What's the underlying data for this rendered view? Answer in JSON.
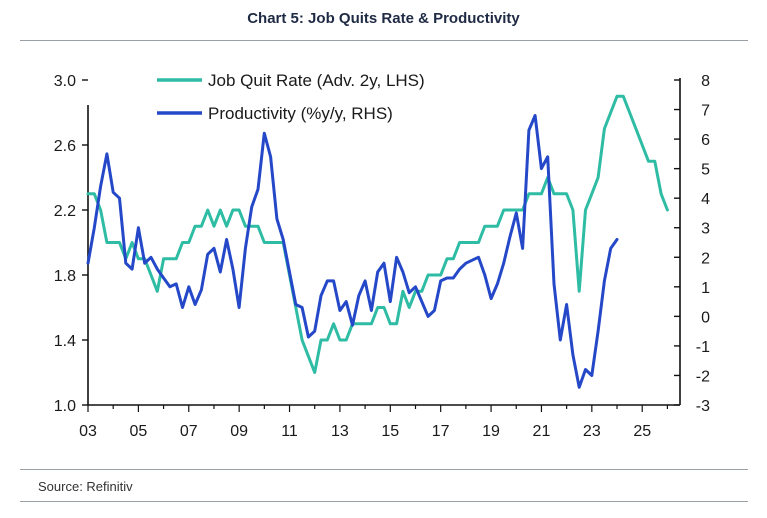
{
  "chart_data": {
    "type": "line",
    "title": "Chart 5: Job Quits Rate & Productivity",
    "source": "Source: Refinitiv",
    "x_axis": {
      "min": 2003,
      "max": 2026.5,
      "tick_values": [
        2003,
        2005,
        2007,
        2009,
        2011,
        2013,
        2015,
        2017,
        2019,
        2021,
        2023,
        2025
      ],
      "tick_labels": [
        "03",
        "05",
        "07",
        "09",
        "11",
        "13",
        "15",
        "17",
        "19",
        "21",
        "23",
        "25"
      ]
    },
    "y_left": {
      "min": 1.0,
      "max": 3.0,
      "ticks": [
        1.0,
        1.4,
        1.8,
        2.2,
        2.6,
        3.0
      ],
      "tick_labels": [
        "1.0",
        "1.4",
        "1.8",
        "2.2",
        "2.6",
        "3.0"
      ]
    },
    "y_right": {
      "min": -3,
      "max": 8,
      "ticks": [
        -3,
        -2,
        -1,
        0,
        1,
        2,
        3,
        4,
        5,
        6,
        7,
        8
      ],
      "tick_labels": [
        "-3",
        "-2",
        "-1",
        "0",
        "1",
        "2",
        "3",
        "4",
        "5",
        "6",
        "7",
        "8"
      ]
    },
    "colors": {
      "quits": "#2ebca4",
      "productivity": "#2448c8"
    },
    "legend_position": "top-left",
    "series": [
      {
        "name": "Job Quit Rate (Adv. 2y, LHS)",
        "axis": "left",
        "points": [
          [
            2003.0,
            2.3
          ],
          [
            2003.25,
            2.3
          ],
          [
            2003.5,
            2.2
          ],
          [
            2003.75,
            2.0
          ],
          [
            2004.0,
            2.0
          ],
          [
            2004.25,
            2.0
          ],
          [
            2004.5,
            1.9
          ],
          [
            2004.75,
            2.0
          ],
          [
            2005.0,
            1.9
          ],
          [
            2005.25,
            1.9
          ],
          [
            2005.5,
            1.8
          ],
          [
            2005.75,
            1.7
          ],
          [
            2006.0,
            1.9
          ],
          [
            2006.25,
            1.9
          ],
          [
            2006.5,
            1.9
          ],
          [
            2006.75,
            2.0
          ],
          [
            2007.0,
            2.0
          ],
          [
            2007.25,
            2.1
          ],
          [
            2007.5,
            2.1
          ],
          [
            2007.75,
            2.2
          ],
          [
            2008.0,
            2.1
          ],
          [
            2008.25,
            2.2
          ],
          [
            2008.5,
            2.1
          ],
          [
            2008.75,
            2.2
          ],
          [
            2009.0,
            2.2
          ],
          [
            2009.25,
            2.1
          ],
          [
            2009.5,
            2.1
          ],
          [
            2009.75,
            2.1
          ],
          [
            2010.0,
            2.0
          ],
          [
            2010.25,
            2.0
          ],
          [
            2010.5,
            2.0
          ],
          [
            2010.75,
            2.0
          ],
          [
            2011.0,
            1.8
          ],
          [
            2011.25,
            1.6
          ],
          [
            2011.5,
            1.4
          ],
          [
            2011.75,
            1.3
          ],
          [
            2012.0,
            1.2
          ],
          [
            2012.25,
            1.4
          ],
          [
            2012.5,
            1.4
          ],
          [
            2012.75,
            1.5
          ],
          [
            2013.0,
            1.4
          ],
          [
            2013.25,
            1.4
          ],
          [
            2013.5,
            1.5
          ],
          [
            2013.75,
            1.5
          ],
          [
            2014.0,
            1.5
          ],
          [
            2014.25,
            1.5
          ],
          [
            2014.5,
            1.6
          ],
          [
            2014.75,
            1.6
          ],
          [
            2015.0,
            1.5
          ],
          [
            2015.25,
            1.5
          ],
          [
            2015.5,
            1.7
          ],
          [
            2015.75,
            1.6
          ],
          [
            2016.0,
            1.7
          ],
          [
            2016.25,
            1.7
          ],
          [
            2016.5,
            1.8
          ],
          [
            2016.75,
            1.8
          ],
          [
            2017.0,
            1.8
          ],
          [
            2017.25,
            1.9
          ],
          [
            2017.5,
            1.9
          ],
          [
            2017.75,
            2.0
          ],
          [
            2018.0,
            2.0
          ],
          [
            2018.25,
            2.0
          ],
          [
            2018.5,
            2.0
          ],
          [
            2018.75,
            2.1
          ],
          [
            2019.0,
            2.1
          ],
          [
            2019.25,
            2.1
          ],
          [
            2019.5,
            2.2
          ],
          [
            2019.75,
            2.2
          ],
          [
            2020.0,
            2.2
          ],
          [
            2020.25,
            2.2
          ],
          [
            2020.5,
            2.3
          ],
          [
            2020.75,
            2.3
          ],
          [
            2021.0,
            2.3
          ],
          [
            2021.25,
            2.4
          ],
          [
            2021.5,
            2.3
          ],
          [
            2021.75,
            2.3
          ],
          [
            2022.0,
            2.3
          ],
          [
            2022.25,
            2.2
          ],
          [
            2022.5,
            1.7
          ],
          [
            2022.75,
            2.2
          ],
          [
            2023.0,
            2.3
          ],
          [
            2023.25,
            2.4
          ],
          [
            2023.5,
            2.7
          ],
          [
            2023.75,
            2.8
          ],
          [
            2024.0,
            2.9
          ],
          [
            2024.25,
            2.9
          ],
          [
            2024.5,
            2.8
          ],
          [
            2024.75,
            2.7
          ],
          [
            2025.0,
            2.6
          ],
          [
            2025.25,
            2.5
          ],
          [
            2025.5,
            2.5
          ],
          [
            2025.75,
            2.3
          ],
          [
            2026.0,
            2.2
          ]
        ]
      },
      {
        "name": "Productivity (%y/y, RHS)",
        "axis": "right",
        "points": [
          [
            2003.0,
            1.8
          ],
          [
            2003.25,
            3.0
          ],
          [
            2003.5,
            4.4
          ],
          [
            2003.75,
            5.5
          ],
          [
            2004.0,
            4.2
          ],
          [
            2004.25,
            4.0
          ],
          [
            2004.5,
            1.8
          ],
          [
            2004.75,
            1.6
          ],
          [
            2005.0,
            3.0
          ],
          [
            2005.25,
            1.8
          ],
          [
            2005.5,
            2.0
          ],
          [
            2005.75,
            1.6
          ],
          [
            2006.0,
            1.3
          ],
          [
            2006.25,
            1.0
          ],
          [
            2006.5,
            1.1
          ],
          [
            2006.75,
            0.3
          ],
          [
            2007.0,
            1.0
          ],
          [
            2007.25,
            0.4
          ],
          [
            2007.5,
            0.9
          ],
          [
            2007.75,
            2.1
          ],
          [
            2008.0,
            2.3
          ],
          [
            2008.25,
            1.5
          ],
          [
            2008.5,
            2.6
          ],
          [
            2008.75,
            1.6
          ],
          [
            2009.0,
            0.3
          ],
          [
            2009.25,
            2.3
          ],
          [
            2009.5,
            3.7
          ],
          [
            2009.75,
            4.3
          ],
          [
            2010.0,
            6.2
          ],
          [
            2010.25,
            5.4
          ],
          [
            2010.5,
            3.3
          ],
          [
            2010.75,
            2.6
          ],
          [
            2011.0,
            1.5
          ],
          [
            2011.25,
            0.4
          ],
          [
            2011.5,
            0.3
          ],
          [
            2011.75,
            -0.7
          ],
          [
            2012.0,
            -0.5
          ],
          [
            2012.25,
            0.7
          ],
          [
            2012.5,
            1.2
          ],
          [
            2012.75,
            1.2
          ],
          [
            2013.0,
            0.2
          ],
          [
            2013.25,
            0.5
          ],
          [
            2013.5,
            -0.3
          ],
          [
            2013.75,
            0.7
          ],
          [
            2014.0,
            1.2
          ],
          [
            2014.25,
            0.2
          ],
          [
            2014.5,
            1.5
          ],
          [
            2014.75,
            1.8
          ],
          [
            2015.0,
            0.5
          ],
          [
            2015.25,
            2.0
          ],
          [
            2015.5,
            1.5
          ],
          [
            2015.75,
            0.8
          ],
          [
            2016.0,
            1.0
          ],
          [
            2016.25,
            0.5
          ],
          [
            2016.5,
            0.0
          ],
          [
            2016.75,
            0.2
          ],
          [
            2017.0,
            1.2
          ],
          [
            2017.25,
            1.3
          ],
          [
            2017.5,
            1.3
          ],
          [
            2017.75,
            1.6
          ],
          [
            2018.0,
            1.8
          ],
          [
            2018.25,
            1.9
          ],
          [
            2018.5,
            2.0
          ],
          [
            2018.75,
            1.4
          ],
          [
            2019.0,
            0.6
          ],
          [
            2019.25,
            1.1
          ],
          [
            2019.5,
            1.8
          ],
          [
            2019.75,
            2.7
          ],
          [
            2020.0,
            3.5
          ],
          [
            2020.25,
            2.3
          ],
          [
            2020.5,
            6.3
          ],
          [
            2020.75,
            6.8
          ],
          [
            2021.0,
            5.0
          ],
          [
            2021.25,
            5.4
          ],
          [
            2021.5,
            1.1
          ],
          [
            2021.75,
            -0.8
          ],
          [
            2022.0,
            0.4
          ],
          [
            2022.25,
            -1.3
          ],
          [
            2022.5,
            -2.4
          ],
          [
            2022.75,
            -1.8
          ],
          [
            2023.0,
            -2.0
          ],
          [
            2023.25,
            -0.5
          ],
          [
            2023.5,
            1.2
          ],
          [
            2023.75,
            2.3
          ],
          [
            2024.0,
            2.6
          ]
        ]
      }
    ]
  }
}
